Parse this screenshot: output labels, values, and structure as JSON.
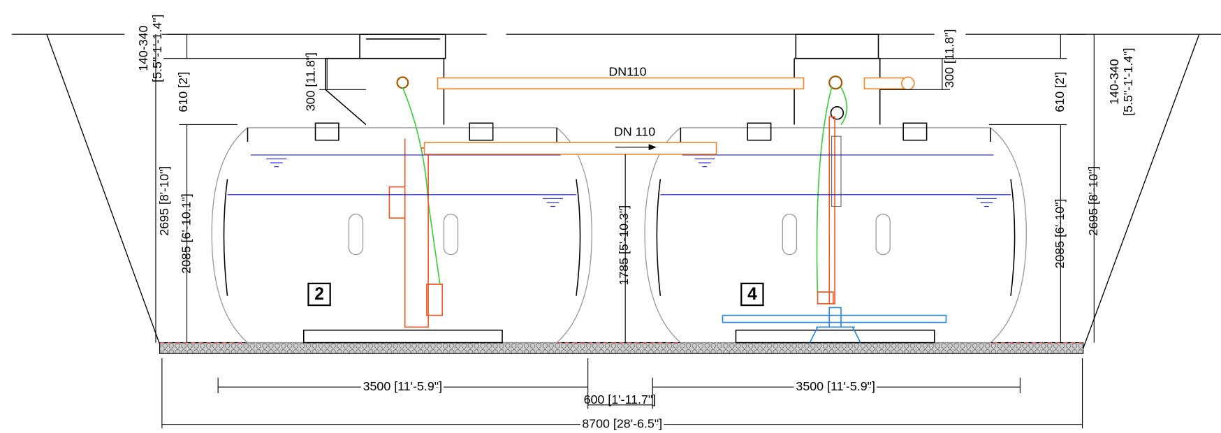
{
  "left": {
    "cover_range": "140-340",
    "cover_range_imperial": "[5.5\"-1'-1.4\"]",
    "neck": "610 [2']",
    "riser": "300 [11.8\"]",
    "total_height": "2695 [8'-10\"]",
    "tank_height": "2085 [6'-10.1\"]"
  },
  "right": {
    "cover_range": "140-340",
    "cover_range_imperial": "[5.5\"-1'-1.4\"]",
    "neck": "610 [2']",
    "riser": "300 [11.8\"]",
    "total_height": "2695 [8'-10\"]",
    "tank_height": "2085 [6'-10\"]"
  },
  "pipes": {
    "upper": "DN110",
    "lower": "DN 110"
  },
  "inlet_height": "1785 [5'-10.3\"]",
  "tanks": {
    "first": "2",
    "second": "4"
  },
  "bottom": {
    "tank_length_1": "3500 [11'-5.9\"]",
    "gap": "600 [1'-11.7\"]",
    "tank_length_2": "3500 [11'-5.9\"]",
    "total_length": "8700 [28'-6.5\"]"
  }
}
